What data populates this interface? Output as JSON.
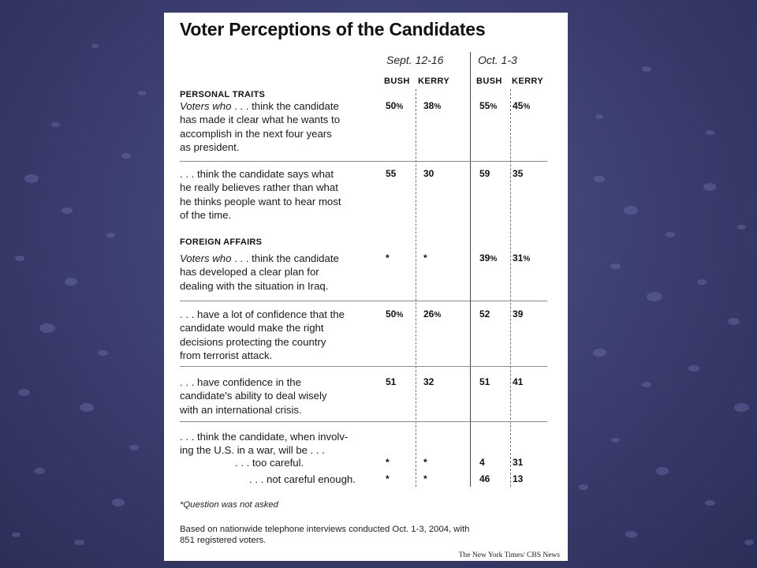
{
  "chart_data": {
    "type": "table",
    "title": "Voter Perceptions of the Candidates",
    "periods": [
      "Sept. 12-16",
      "Oct. 1-3"
    ],
    "columns": [
      "BUSH",
      "KERRY",
      "BUSH",
      "KERRY"
    ],
    "sections": [
      {
        "heading": "PERSONAL TRAITS",
        "rows": [
          {
            "prefix": "Voters who",
            "lines": [
              "Voters who . . . think the candidate",
              "has made it clear what he wants to",
              "accomplish in the next four years",
              "as president."
            ],
            "values": [
              {
                "v": "50",
                "p": "%"
              },
              {
                "v": "38",
                "p": "%"
              },
              {
                "v": "55",
                "p": "%"
              },
              {
                "v": "45",
                "p": "%"
              }
            ]
          },
          {
            "lines": [
              ". . . think the candidate says what",
              "he really believes rather than what",
              "he thinks people want to hear most",
              "of the time."
            ],
            "values": [
              {
                "v": "55",
                "p": ""
              },
              {
                "v": "30",
                "p": ""
              },
              {
                "v": "59",
                "p": ""
              },
              {
                "v": "35",
                "p": ""
              }
            ]
          }
        ]
      },
      {
        "heading": "FOREIGN AFFAIRS",
        "rows": [
          {
            "prefix": "Voters who",
            "lines": [
              "Voters who . . . think the candidate",
              "has developed a clear plan for",
              "dealing with the situation in Iraq."
            ],
            "values": [
              {
                "v": "*",
                "p": ""
              },
              {
                "v": "*",
                "p": ""
              },
              {
                "v": "39",
                "p": "%"
              },
              {
                "v": "31",
                "p": "%"
              }
            ]
          },
          {
            "lines": [
              ". . . have a lot of confidence that the",
              "candidate would make the right",
              "decisions protecting the country",
              "from terrorist attack."
            ],
            "values": [
              {
                "v": "50",
                "p": "%"
              },
              {
                "v": "26",
                "p": "%"
              },
              {
                "v": "52",
                "p": ""
              },
              {
                "v": "39",
                "p": ""
              }
            ]
          },
          {
            "lines": [
              ". . . have confidence in the",
              "candidate's ability to deal wisely",
              "with an international crisis."
            ],
            "values": [
              {
                "v": "51",
                "p": ""
              },
              {
                "v": "32",
                "p": ""
              },
              {
                "v": "51",
                "p": ""
              },
              {
                "v": "41",
                "p": ""
              }
            ]
          },
          {
            "lines": [
              ". . . think the candidate, when involv-",
              "ing the U.S. in a war, will be . . ."
            ],
            "subrows": [
              {
                "label": ". . . too careful.",
                "values": [
                  "*",
                  "*",
                  "4",
                  "31"
                ]
              },
              {
                "label": ". . . not careful enough.",
                "values": [
                  "*",
                  "*",
                  "46",
                  "13"
                ]
              }
            ]
          }
        ]
      }
    ],
    "footnote": "*Question was not asked",
    "source_note": [
      "Based on nationwide telephone interviews conducted Oct. 1-3, 2004, with",
      "851 registered voters."
    ],
    "credit": "The New York Times/ CBS News"
  }
}
